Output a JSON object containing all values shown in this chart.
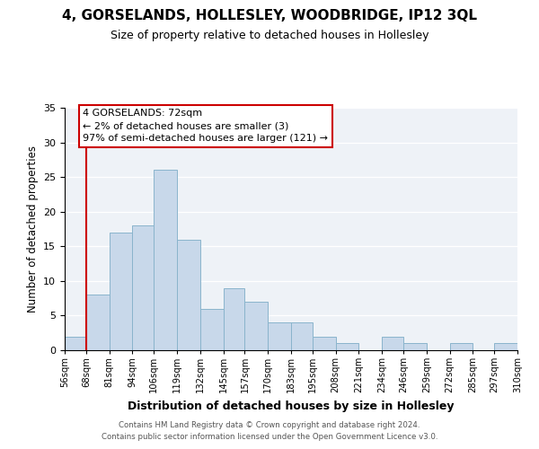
{
  "title": "4, GORSELANDS, HOLLESLEY, WOODBRIDGE, IP12 3QL",
  "subtitle": "Size of property relative to detached houses in Hollesley",
  "xlabel": "Distribution of detached houses by size in Hollesley",
  "ylabel": "Number of detached properties",
  "bar_color": "#c8d8ea",
  "bar_edge_color": "#8ab4cc",
  "red_line_x": 68,
  "bin_edges": [
    56,
    68,
    81,
    94,
    106,
    119,
    132,
    145,
    157,
    170,
    183,
    195,
    208,
    221,
    234,
    246,
    259,
    272,
    285,
    297,
    310
  ],
  "bin_labels": [
    "56sqm",
    "68sqm",
    "81sqm",
    "94sqm",
    "106sqm",
    "119sqm",
    "132sqm",
    "145sqm",
    "157sqm",
    "170sqm",
    "183sqm",
    "195sqm",
    "208sqm",
    "221sqm",
    "234sqm",
    "246sqm",
    "259sqm",
    "272sqm",
    "285sqm",
    "297sqm",
    "310sqm"
  ],
  "counts": [
    2,
    8,
    17,
    18,
    26,
    16,
    6,
    9,
    7,
    4,
    4,
    2,
    1,
    0,
    2,
    1,
    0,
    1,
    0,
    1
  ],
  "ylim": [
    0,
    35
  ],
  "yticks": [
    0,
    5,
    10,
    15,
    20,
    25,
    30,
    35
  ],
  "annotation_title": "4 GORSELANDS: 72sqm",
  "annotation_line1": "← 2% of detached houses are smaller (3)",
  "annotation_line2": "97% of semi-detached houses are larger (121) →",
  "annotation_box_color": "#ffffff",
  "annotation_box_edge_color": "#cc0000",
  "footer1": "Contains HM Land Registry data © Crown copyright and database right 2024.",
  "footer2": "Contains public sector information licensed under the Open Government Licence v3.0.",
  "background_color": "#eef2f7"
}
